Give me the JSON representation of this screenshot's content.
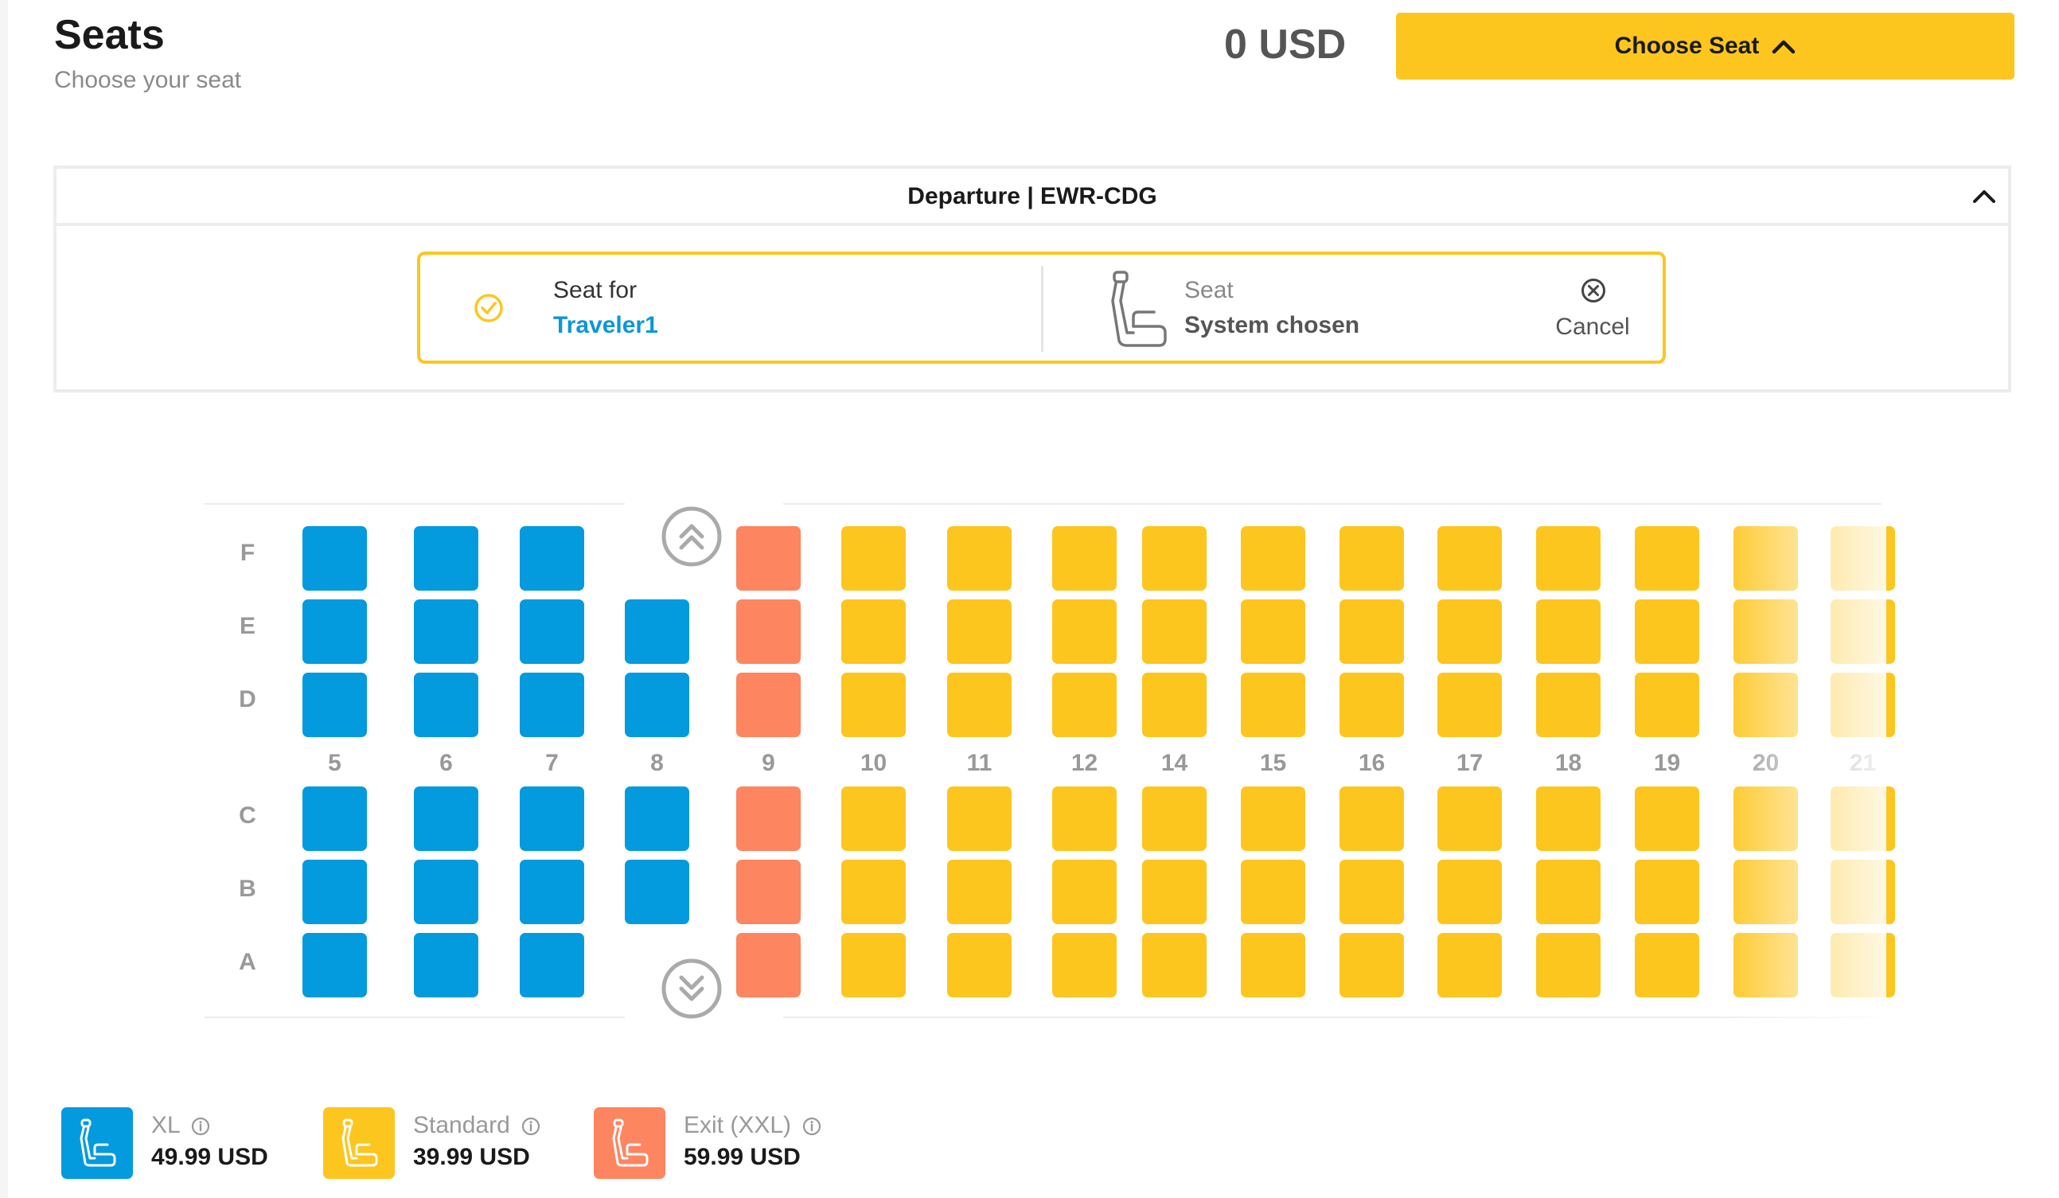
{
  "header": {
    "title": "Seats",
    "subtitle": "Choose your seat",
    "total_price": "0 USD",
    "choose_button_label": "Choose Seat"
  },
  "flight": {
    "title": "Departure | EWR-CDG",
    "seat_for_label": "Seat for",
    "traveler_name": "Traveler1",
    "seat_label": "Seat",
    "seat_value": "System chosen",
    "cancel_label": "Cancel"
  },
  "seat_map": {
    "row_letters": [
      "F",
      "E",
      "D",
      "C",
      "B",
      "A"
    ],
    "columns": [
      {
        "number": "5",
        "type": "xl",
        "seats": [
          "F",
          "E",
          "D",
          "C",
          "B",
          "A"
        ]
      },
      {
        "number": "6",
        "type": "xl",
        "seats": [
          "F",
          "E",
          "D",
          "C",
          "B",
          "A"
        ]
      },
      {
        "number": "7",
        "type": "xl",
        "seats": [
          "F",
          "E",
          "D",
          "C",
          "B",
          "A"
        ]
      },
      {
        "number": "8",
        "type": "xl",
        "seats": [
          "E",
          "D",
          "C",
          "B"
        ]
      },
      {
        "number": "9",
        "type": "exit",
        "seats": [
          "F",
          "E",
          "D",
          "C",
          "B",
          "A"
        ]
      },
      {
        "number": "10",
        "type": "standard",
        "seats": [
          "F",
          "E",
          "D",
          "C",
          "B",
          "A"
        ]
      },
      {
        "number": "11",
        "type": "standard",
        "seats": [
          "F",
          "E",
          "D",
          "C",
          "B",
          "A"
        ]
      },
      {
        "number": "12",
        "type": "standard",
        "seats": [
          "F",
          "E",
          "D",
          "C",
          "B",
          "A"
        ]
      },
      {
        "number": "14",
        "type": "standard",
        "seats": [
          "F",
          "E",
          "D",
          "C",
          "B",
          "A"
        ]
      },
      {
        "number": "15",
        "type": "standard",
        "seats": [
          "F",
          "E",
          "D",
          "C",
          "B",
          "A"
        ]
      },
      {
        "number": "16",
        "type": "standard",
        "seats": [
          "F",
          "E",
          "D",
          "C",
          "B",
          "A"
        ]
      },
      {
        "number": "17",
        "type": "standard",
        "seats": [
          "F",
          "E",
          "D",
          "C",
          "B",
          "A"
        ]
      },
      {
        "number": "18",
        "type": "standard",
        "seats": [
          "F",
          "E",
          "D",
          "C",
          "B",
          "A"
        ]
      },
      {
        "number": "19",
        "type": "standard",
        "seats": [
          "F",
          "E",
          "D",
          "C",
          "B",
          "A"
        ]
      },
      {
        "number": "20",
        "type": "standard",
        "seats": [
          "F",
          "E",
          "D",
          "C",
          "B",
          "A"
        ]
      },
      {
        "number": "21",
        "type": "standard",
        "seats": [
          "F",
          "E",
          "D",
          "C",
          "B",
          "A"
        ]
      }
    ]
  },
  "legend": [
    {
      "name": "XL",
      "price": "49.99 USD",
      "color": "#039ade"
    },
    {
      "name": "Standard",
      "price": "39.99 USD",
      "color": "#fdc61f"
    },
    {
      "name": "Exit (XXL)",
      "price": "59.99 USD",
      "color": "#fd8560"
    }
  ],
  "colors": {
    "accent": "#fdc61f",
    "xl": "#039ade",
    "standard": "#fdc61f",
    "exit": "#fd8560",
    "link": "#0e96d8"
  },
  "icons": {
    "choose_button": "chevron-up-icon",
    "panel_toggle": "chevron-up-icon",
    "seat_for": "check-circle-icon",
    "seat": "seat-icon",
    "cancel": "close-circle-icon",
    "scroll_up": "double-chevron-up-icon",
    "scroll_down": "double-chevron-down-icon",
    "legend_info": "info-icon"
  }
}
